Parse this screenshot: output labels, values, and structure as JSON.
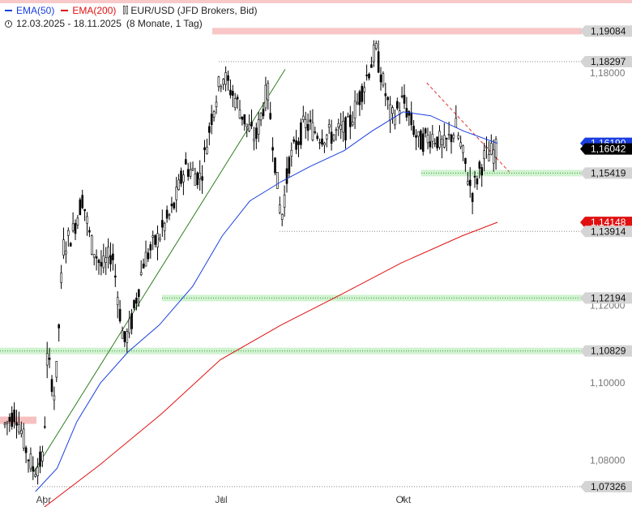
{
  "legend": {
    "ema50_label": "EMA(50)",
    "ema200_label": "EMA(200)",
    "instrument_label": "EUR/USD (JFD Brokers, Bid)",
    "period_label": "12.03.2025 - 18.11.2025",
    "period_detail": "(8 Monate, 1 Tag)"
  },
  "colors": {
    "ema50": "#1a3fe0",
    "ema200": "#e01010",
    "candle": "#000000",
    "support_zone": "#c8f0c8",
    "resistance_zone": "#f7c0c0",
    "trendline_up": "#2e7d1e",
    "trendline_down": "#e03030"
  },
  "chart_data": {
    "type": "candlestick",
    "symbol": "EUR/USD",
    "ylim": [
      1.068,
      1.197
    ],
    "y_ticks": [
      "1,18000",
      "1,12000",
      "1,10000",
      "1,08000"
    ],
    "x_ticks": [
      "Apr",
      "Jul",
      "Okt"
    ],
    "price_levels": [
      {
        "label": "1,19084",
        "value": 1.19084,
        "style": "resistance-zone"
      },
      {
        "label": "1,18297",
        "value": 1.18297,
        "style": "dotted"
      },
      {
        "label": "1,15419",
        "value": 1.15419,
        "style": "support-zone"
      },
      {
        "label": "1,13914",
        "value": 1.13914,
        "style": "dotted"
      },
      {
        "label": "1,12194",
        "value": 1.12194,
        "style": "support-zone"
      },
      {
        "label": "1,10829",
        "value": 1.10829,
        "style": "support-zone"
      },
      {
        "label": "1,07326",
        "value": 1.07326,
        "style": "dotted"
      }
    ],
    "current_price": {
      "label": "1,16042",
      "value": 1.16042
    },
    "ema50_last": {
      "label": "1,16190",
      "value": 1.1619
    },
    "ema200_last": {
      "label": "1,14148",
      "value": 1.14148
    },
    "price_path": [
      [
        "2025-03-12",
        1.089
      ],
      [
        "2025-03-18",
        1.0925
      ],
      [
        "2025-03-24",
        1.0815
      ],
      [
        "2025-03-27",
        1.0775
      ],
      [
        "2025-04-01",
        1.0805
      ],
      [
        "2025-04-03",
        1.107
      ],
      [
        "2025-04-07",
        1.096
      ],
      [
        "2025-04-11",
        1.135
      ],
      [
        "2025-04-16",
        1.139
      ],
      [
        "2025-04-21",
        1.148
      ],
      [
        "2025-04-25",
        1.1365
      ],
      [
        "2025-05-01",
        1.1295
      ],
      [
        "2025-05-06",
        1.134
      ],
      [
        "2025-05-12",
        1.11
      ],
      [
        "2025-05-16",
        1.116
      ],
      [
        "2025-05-22",
        1.1315
      ],
      [
        "2025-05-30",
        1.138
      ],
      [
        "2025-06-06",
        1.145
      ],
      [
        "2025-06-12",
        1.156
      ],
      [
        "2025-06-20",
        1.153
      ],
      [
        "2025-06-26",
        1.17
      ],
      [
        "2025-07-01",
        1.18
      ],
      [
        "2025-07-08",
        1.173
      ],
      [
        "2025-07-14",
        1.166
      ],
      [
        "2025-07-18",
        1.163
      ],
      [
        "2025-07-24",
        1.176
      ],
      [
        "2025-07-31",
        1.142
      ],
      [
        "2025-08-04",
        1.157
      ],
      [
        "2025-08-12",
        1.167
      ],
      [
        "2025-08-20",
        1.164
      ],
      [
        "2025-08-26",
        1.164
      ],
      [
        "2025-09-03",
        1.166
      ],
      [
        "2025-09-09",
        1.174
      ],
      [
        "2025-09-17",
        1.186
      ],
      [
        "2025-09-25",
        1.168
      ],
      [
        "2025-10-01",
        1.173
      ],
      [
        "2025-10-09",
        1.162
      ],
      [
        "2025-10-16",
        1.164
      ],
      [
        "2025-10-22",
        1.161
      ],
      [
        "2025-10-28",
        1.166
      ],
      [
        "2025-11-05",
        1.149
      ],
      [
        "2025-11-11",
        1.158
      ],
      [
        "2025-11-18",
        1.1604
      ]
    ],
    "ema50": [
      [
        "2025-03-28",
        1.072
      ],
      [
        "2025-04-08",
        1.078
      ],
      [
        "2025-04-18",
        1.09
      ],
      [
        "2025-04-30",
        1.1
      ],
      [
        "2025-05-14",
        1.108
      ],
      [
        "2025-05-30",
        1.115
      ],
      [
        "2025-06-16",
        1.125
      ],
      [
        "2025-07-01",
        1.138
      ],
      [
        "2025-07-15",
        1.147
      ],
      [
        "2025-07-31",
        1.152
      ],
      [
        "2025-08-15",
        1.156
      ],
      [
        "2025-09-01",
        1.16
      ],
      [
        "2025-09-15",
        1.165
      ],
      [
        "2025-10-01",
        1.17
      ],
      [
        "2025-10-15",
        1.169
      ],
      [
        "2025-11-01",
        1.165
      ],
      [
        "2025-11-18",
        1.1619
      ]
    ],
    "ema200": [
      [
        "2025-03-30",
        1.067
      ],
      [
        "2025-04-30",
        1.079
      ],
      [
        "2025-05-31",
        1.092
      ],
      [
        "2025-06-30",
        1.106
      ],
      [
        "2025-07-31",
        1.115
      ],
      [
        "2025-08-31",
        1.123
      ],
      [
        "2025-09-30",
        1.131
      ],
      [
        "2025-10-31",
        1.138
      ],
      [
        "2025-11-18",
        1.1415
      ]
    ],
    "trendlines": [
      {
        "style": "up",
        "from": [
          "2025-03-27",
          1.077
        ],
        "to": [
          "2025-08-02",
          1.181
        ]
      },
      {
        "style": "down",
        "from": [
          "2025-10-13",
          1.1775
        ],
        "to": [
          "2025-11-24",
          1.1545
        ]
      }
    ]
  }
}
